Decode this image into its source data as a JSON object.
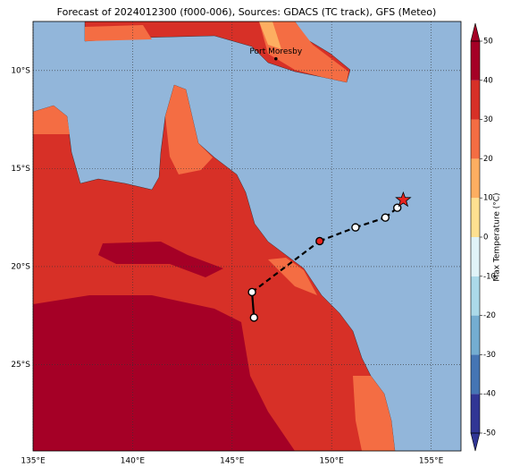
{
  "chart_data": {
    "type": "map",
    "title": "Forecast of 2024012300 (f000-006), Sources: GDACS (TC track), GFS (Meteo)",
    "xlim": [
      135,
      156.5
    ],
    "ylim": [
      -29.4,
      -7.5
    ],
    "xticks": [
      {
        "value": 135,
        "label": "135°E"
      },
      {
        "value": 140,
        "label": "140°E"
      },
      {
        "value": 145,
        "label": "145°E"
      },
      {
        "value": 150,
        "label": "150°E"
      },
      {
        "value": 155,
        "label": "155°E"
      }
    ],
    "yticks": [
      {
        "value": -10,
        "label": "10°S"
      },
      {
        "value": -15,
        "label": "15°S"
      },
      {
        "value": -20,
        "label": "20°S"
      },
      {
        "value": -25,
        "label": "25°S"
      }
    ],
    "grid": true,
    "places": [
      {
        "name": "Port Moresby",
        "lon": 147.2,
        "lat": -9.4
      }
    ],
    "track": {
      "lon": [
        146.1,
        146.0,
        149.4,
        151.2,
        152.7,
        153.3,
        153.6
      ],
      "lat": [
        -22.6,
        -21.3,
        -18.7,
        -18.0,
        -17.5,
        -17.0,
        -16.6
      ],
      "colors": [
        "#ffffff",
        "#ffffff",
        "#e8231e",
        "#ffffff",
        "#ffffff",
        "#ffffff",
        "#e8231e"
      ]
    },
    "colorbar": {
      "label": "Max Temperature (°C)",
      "lim": [
        -50,
        50
      ],
      "ticks": [
        -50,
        -40,
        -30,
        -20,
        -10,
        0,
        10,
        20,
        30,
        40,
        50
      ],
      "colors": [
        "#313695",
        "#4575b4",
        "#74add1",
        "#abd9e9",
        "#e0f3f8",
        "#fee090",
        "#fdae61",
        "#f46d43",
        "#d73027",
        "#a50026"
      ]
    }
  }
}
